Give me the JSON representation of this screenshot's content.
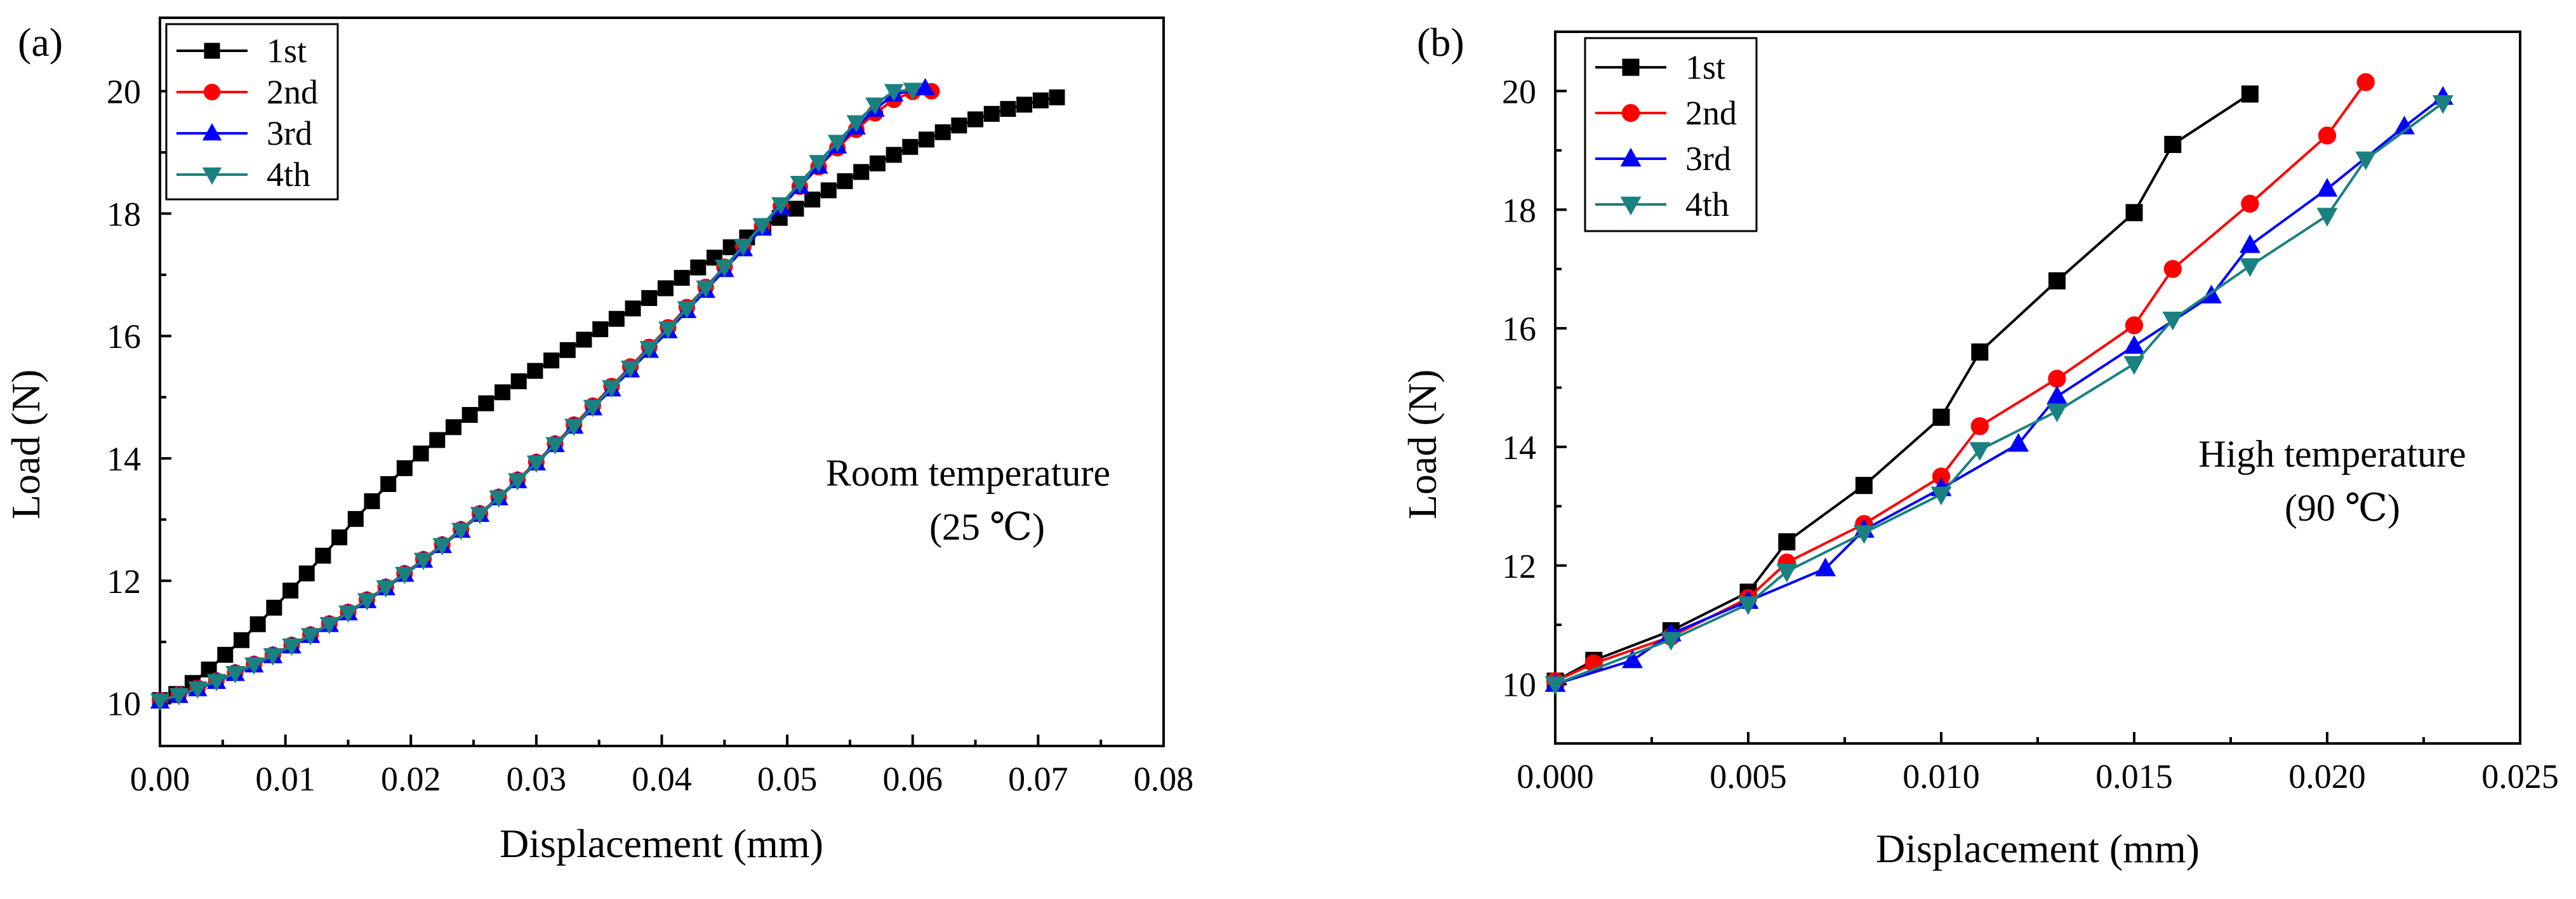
{
  "chart_data": [
    {
      "type": "line",
      "panel_label": "(a)",
      "title": "",
      "xlabel": "Displacement (mm)",
      "ylabel": "Load (N)",
      "xlim": [
        0,
        0.08
      ],
      "ylim": [
        9.3,
        21.2
      ],
      "x_ticks": [
        0.0,
        0.01,
        0.02,
        0.03,
        0.04,
        0.05,
        0.06,
        0.07,
        0.08
      ],
      "x_tick_labels": [
        "0.00",
        "0.01",
        "0.02",
        "0.03",
        "0.04",
        "0.05",
        "0.06",
        "0.07",
        "0.08"
      ],
      "y_ticks": [
        10,
        12,
        14,
        16,
        18,
        20
      ],
      "y_tick_labels": [
        "10",
        "12",
        "14",
        "16",
        "18",
        "20"
      ],
      "legend_position": "top-left",
      "annotation": [
        "Room temperature",
        "(25 ℃)"
      ],
      "series": [
        {
          "name": "1st",
          "color": "#000000",
          "marker": "square",
          "x": [
            0.0,
            0.0013,
            0.0026,
            0.0039,
            0.0052,
            0.0065,
            0.0078,
            0.0091,
            0.0104,
            0.0117,
            0.013,
            0.0143,
            0.0156,
            0.0169,
            0.0182,
            0.0195,
            0.0208,
            0.0221,
            0.0234,
            0.0247,
            0.026,
            0.0273,
            0.0286,
            0.0299,
            0.0312,
            0.0325,
            0.0338,
            0.0351,
            0.0364,
            0.0377,
            0.039,
            0.0403,
            0.0416,
            0.0429,
            0.0442,
            0.0455,
            0.0468,
            0.0481,
            0.0494,
            0.0507,
            0.052,
            0.0533,
            0.0546,
            0.0559,
            0.0572,
            0.0585,
            0.0598,
            0.0611,
            0.0624,
            0.0637,
            0.065,
            0.0663,
            0.0676,
            0.0689,
            0.0702,
            0.0715
          ],
          "y": [
            10.05,
            10.15,
            10.33,
            10.55,
            10.79,
            11.03,
            11.29,
            11.56,
            11.84,
            12.12,
            12.41,
            12.71,
            13.01,
            13.3,
            13.58,
            13.84,
            14.08,
            14.3,
            14.51,
            14.71,
            14.9,
            15.08,
            15.26,
            15.43,
            15.6,
            15.77,
            15.94,
            16.11,
            16.28,
            16.45,
            16.62,
            16.78,
            16.95,
            17.12,
            17.28,
            17.45,
            17.61,
            17.77,
            17.93,
            18.08,
            18.23,
            18.38,
            18.53,
            18.68,
            18.82,
            18.96,
            19.09,
            19.21,
            19.33,
            19.44,
            19.54,
            19.63,
            19.71,
            19.78,
            19.85,
            19.9
          ]
        },
        {
          "name": "2nd",
          "color": "#ff0000",
          "marker": "circle",
          "x": [
            0.0,
            0.0015,
            0.003,
            0.0045,
            0.006,
            0.0075,
            0.009,
            0.0105,
            0.012,
            0.0135,
            0.015,
            0.0165,
            0.018,
            0.0195,
            0.021,
            0.0225,
            0.024,
            0.0255,
            0.027,
            0.0285,
            0.03,
            0.0315,
            0.033,
            0.0345,
            0.036,
            0.0375,
            0.039,
            0.0405,
            0.042,
            0.0435,
            0.045,
            0.0465,
            0.048,
            0.0495,
            0.051,
            0.0525,
            0.054,
            0.0555,
            0.057,
            0.0585,
            0.06,
            0.0615
          ],
          "y": [
            10.05,
            10.14,
            10.25,
            10.37,
            10.5,
            10.64,
            10.79,
            10.95,
            11.12,
            11.3,
            11.49,
            11.69,
            11.9,
            12.12,
            12.35,
            12.59,
            12.84,
            13.1,
            13.37,
            13.65,
            13.94,
            14.24,
            14.55,
            14.86,
            15.18,
            15.5,
            15.82,
            16.14,
            16.47,
            16.8,
            17.13,
            17.46,
            17.79,
            18.12,
            18.44,
            18.76,
            19.07,
            19.37,
            19.64,
            19.86,
            19.99,
            20.0
          ]
        },
        {
          "name": "3rd",
          "color": "#0000ff",
          "marker": "triangle-up",
          "x": [
            0.0,
            0.0015,
            0.003,
            0.0045,
            0.006,
            0.0075,
            0.009,
            0.0105,
            0.012,
            0.0135,
            0.015,
            0.0165,
            0.018,
            0.0195,
            0.021,
            0.0225,
            0.024,
            0.0255,
            0.027,
            0.0285,
            0.03,
            0.0315,
            0.033,
            0.0345,
            0.036,
            0.0375,
            0.039,
            0.0405,
            0.042,
            0.0435,
            0.045,
            0.0465,
            0.048,
            0.0495,
            0.051,
            0.0525,
            0.054,
            0.0555,
            0.057,
            0.0585,
            0.061
          ],
          "y": [
            10.03,
            10.12,
            10.23,
            10.35,
            10.48,
            10.62,
            10.77,
            10.93,
            11.1,
            11.28,
            11.47,
            11.67,
            11.88,
            12.1,
            12.33,
            12.57,
            12.82,
            13.08,
            13.35,
            13.63,
            13.92,
            14.22,
            14.52,
            14.82,
            15.13,
            15.44,
            15.76,
            16.08,
            16.41,
            16.74,
            17.08,
            17.42,
            17.76,
            18.1,
            18.44,
            18.77,
            19.1,
            19.41,
            19.7,
            19.95,
            20.05
          ]
        },
        {
          "name": "4th",
          "color": "#1a8080",
          "marker": "triangle-down",
          "x": [
            0.0,
            0.0015,
            0.003,
            0.0045,
            0.006,
            0.0075,
            0.009,
            0.0105,
            0.012,
            0.0135,
            0.015,
            0.0165,
            0.018,
            0.0195,
            0.021,
            0.0225,
            0.024,
            0.0255,
            0.027,
            0.0285,
            0.03,
            0.0315,
            0.033,
            0.0345,
            0.036,
            0.0375,
            0.039,
            0.0405,
            0.042,
            0.0435,
            0.045,
            0.0465,
            0.048,
            0.0495,
            0.051,
            0.0525,
            0.054,
            0.0555,
            0.057,
            0.0585,
            0.06
          ],
          "y": [
            10.04,
            10.13,
            10.24,
            10.36,
            10.49,
            10.63,
            10.78,
            10.94,
            11.11,
            11.29,
            11.48,
            11.68,
            11.89,
            12.11,
            12.34,
            12.58,
            12.83,
            13.09,
            13.36,
            13.64,
            13.93,
            14.23,
            14.53,
            14.84,
            15.16,
            15.48,
            15.8,
            16.12,
            16.45,
            16.79,
            17.13,
            17.47,
            17.81,
            18.15,
            18.5,
            18.84,
            19.17,
            19.49,
            19.78,
            20.0,
            20.02
          ]
        }
      ]
    },
    {
      "type": "line",
      "panel_label": "(b)",
      "title": "",
      "xlabel": "Displacement (mm)",
      "ylabel": "Load (N)",
      "xlim": [
        0,
        0.025
      ],
      "ylim": [
        9.0,
        21.0
      ],
      "x_ticks": [
        0.0,
        0.005,
        0.01,
        0.015,
        0.02,
        0.025
      ],
      "x_tick_labels": [
        "0.000",
        "0.005",
        "0.010",
        "0.015",
        "0.020",
        "0.025"
      ],
      "y_ticks": [
        10,
        12,
        14,
        16,
        18,
        20
      ],
      "y_tick_labels": [
        "10",
        "12",
        "14",
        "16",
        "18",
        "20"
      ],
      "legend_position": "top-left",
      "annotation": [
        "High temperature",
        "(90 ℃)"
      ],
      "series": [
        {
          "name": "1st",
          "color": "#000000",
          "marker": "square",
          "x": [
            0.0,
            0.001,
            0.003,
            0.005,
            0.006,
            0.008,
            0.01,
            0.011,
            0.013,
            0.015,
            0.016,
            0.018
          ],
          "y": [
            10.05,
            10.4,
            10.9,
            11.55,
            12.4,
            13.35,
            14.5,
            15.6,
            16.8,
            17.95,
            19.1,
            19.95
          ]
        },
        {
          "name": "2nd",
          "color": "#ff0000",
          "marker": "circle",
          "x": [
            0.0,
            0.001,
            0.003,
            0.005,
            0.006,
            0.008,
            0.01,
            0.011,
            0.013,
            0.015,
            0.016,
            0.018,
            0.02,
            0.021
          ],
          "y": [
            10.05,
            10.35,
            10.8,
            11.45,
            12.05,
            12.7,
            13.5,
            14.35,
            15.15,
            16.05,
            17.0,
            18.1,
            19.25,
            20.15
          ]
        },
        {
          "name": "3rd",
          "color": "#0000ff",
          "marker": "triangle-up",
          "x": [
            0.0,
            0.002,
            0.003,
            0.005,
            0.007,
            0.008,
            0.01,
            0.012,
            0.013,
            0.015,
            0.017,
            0.018,
            0.02,
            0.022,
            0.023
          ],
          "y": [
            10.0,
            10.4,
            10.85,
            11.4,
            11.95,
            12.6,
            13.3,
            14.05,
            14.85,
            15.7,
            16.55,
            17.4,
            18.35,
            19.4,
            19.9
          ]
        },
        {
          "name": "4th",
          "color": "#1a8080",
          "marker": "triangle-down",
          "x": [
            0.0,
            0.003,
            0.005,
            0.006,
            0.008,
            0.01,
            0.011,
            0.013,
            0.015,
            0.016,
            0.018,
            0.02,
            0.021,
            0.023
          ],
          "y": [
            10.0,
            10.75,
            11.35,
            11.9,
            12.55,
            13.2,
            13.95,
            14.6,
            15.4,
            16.15,
            17.05,
            17.9,
            18.85,
            19.8
          ]
        }
      ]
    }
  ]
}
